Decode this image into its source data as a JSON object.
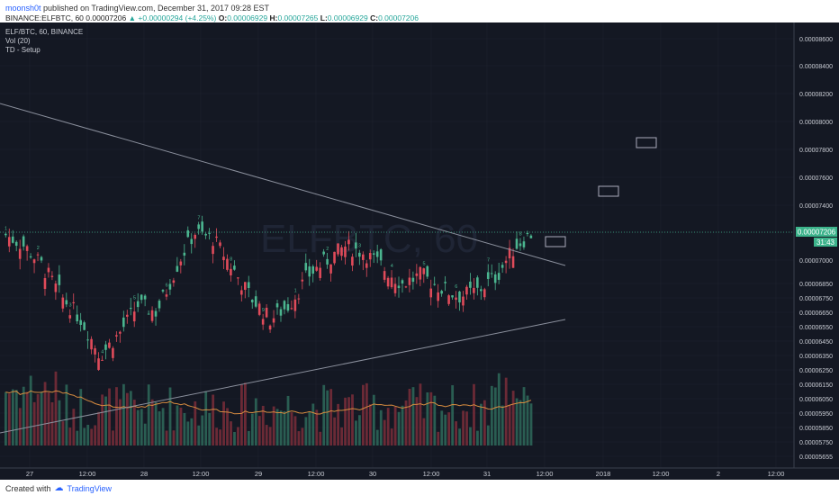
{
  "header": {
    "user": "moonsh0t",
    "published": "published on TradingView.com, December 31, 2017 09:28 EST",
    "symbol": "BINANCE:ELFBTC, 60",
    "last": "0.00007206",
    "change": "+0.00000294 (+4.25%)",
    "open_key": "O:",
    "open": "0.00006929",
    "high_key": "H:",
    "high": "0.00007265",
    "low_key": "L:",
    "low": "0.00006929",
    "close_key": "C:",
    "close": "0.00007206"
  },
  "legend": {
    "line1": "ELF/BTC, 60, BINANCE",
    "line2": "Vol (20)",
    "line3": "TD - Setup"
  },
  "watermark": "ELFBTC, 60",
  "footer": {
    "created_with": "Created with",
    "brand": "TradingView"
  },
  "colors": {
    "bg": "#141823",
    "up": "#4bb58f",
    "down": "#e04b5a",
    "grid": "#1e2330",
    "volma": "#d68b3f",
    "trend": "#8a8f9c",
    "last_label": "#3cb38b"
  },
  "chart_data": {
    "type": "candlestick",
    "y_ticks": [
      "0.00008600",
      "0.00008400",
      "0.00008200",
      "0.00008000",
      "0.00007800",
      "0.00007600",
      "0.00007400",
      "0.00007200",
      "0.00007000",
      "0.00006850",
      "0.00006750",
      "0.00006650",
      "0.00006550",
      "0.00006450",
      "0.00006350",
      "0.00006250",
      "0.00006150",
      "0.00006050",
      "0.00005950",
      "0.00005850",
      "0.00005750",
      "0.00005655"
    ],
    "x_ticks": [
      "27",
      "12:00",
      "28",
      "12:00",
      "29",
      "12:00",
      "30",
      "12:00",
      "31",
      "12:00",
      "2018",
      "12:00",
      "2",
      "12:00"
    ],
    "last_price_label": "0.00007206",
    "countdown_label": "31:43",
    "ohlc_sample": [
      [
        7180,
        7300,
        7050,
        7100
      ],
      [
        7100,
        7200,
        6900,
        6950
      ],
      [
        6950,
        7000,
        6700,
        6750
      ],
      [
        6750,
        6900,
        6500,
        6600
      ],
      [
        6600,
        6700,
        6300,
        6350
      ],
      [
        6350,
        6600,
        6250,
        6500
      ],
      [
        6500,
        6800,
        6450,
        6700
      ],
      [
        6700,
        6900,
        6600,
        6650
      ],
      [
        6650,
        7000,
        6600,
        6950
      ],
      [
        6950,
        7300,
        6900,
        7200
      ],
      [
        7200,
        7450,
        7100,
        7150
      ],
      [
        7150,
        7250,
        6900,
        6950
      ],
      [
        6950,
        7000,
        6700,
        6750
      ],
      [
        6750,
        6800,
        6550,
        6600
      ],
      [
        6600,
        6750,
        6500,
        6700
      ],
      [
        6700,
        6950,
        6650,
        6900
      ],
      [
        6900,
        7100,
        6850,
        7000
      ],
      [
        7000,
        7200,
        6950,
        7100
      ],
      [
        7100,
        7250,
        7000,
        7050
      ],
      [
        7050,
        7100,
        6900,
        6950
      ],
      [
        6950,
        7000,
        6800,
        6850
      ],
      [
        6850,
        6950,
        6750,
        6900
      ],
      [
        6900,
        7000,
        6800,
        6820
      ],
      [
        6820,
        6900,
        6700,
        6760
      ],
      [
        6760,
        6850,
        6650,
        6800
      ],
      [
        6800,
        6950,
        6750,
        6900
      ],
      [
        6900,
        7150,
        6850,
        7100
      ],
      [
        7100,
        7260,
        7050,
        7206
      ]
    ],
    "volume_ma": "Vol (20)"
  }
}
